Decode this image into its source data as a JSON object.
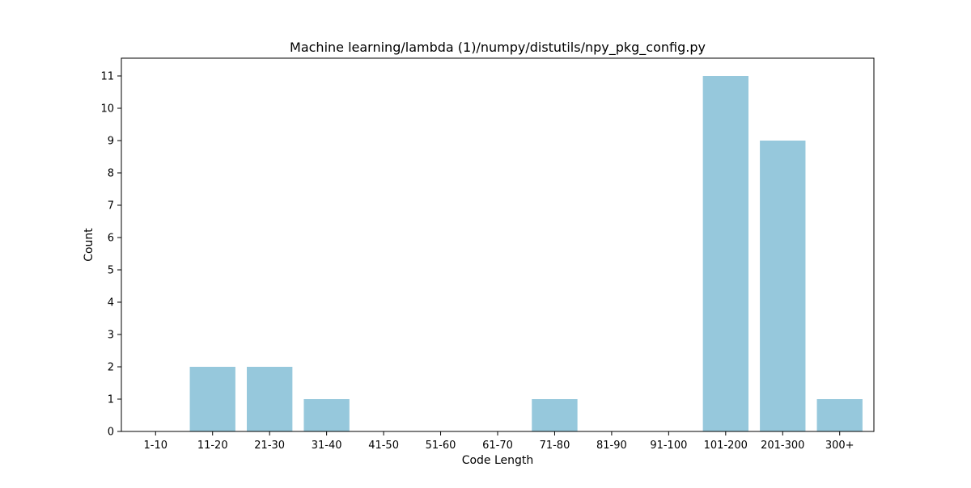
{
  "chart_data": {
    "type": "bar",
    "title": "Machine learning/lambda (1)/numpy/distutils/npy_pkg_config.py",
    "xlabel": "Code Length",
    "ylabel": "Count",
    "categories": [
      "1-10",
      "11-20",
      "21-30",
      "31-40",
      "41-50",
      "51-60",
      "61-70",
      "71-80",
      "81-90",
      "91-100",
      "101-200",
      "201-300",
      "300+"
    ],
    "values": [
      0,
      2,
      2,
      1,
      0,
      0,
      0,
      1,
      0,
      0,
      11,
      9,
      1
    ],
    "ylim": [
      0,
      11.55
    ],
    "yticks": [
      0,
      1,
      2,
      3,
      4,
      5,
      6,
      7,
      8,
      9,
      10,
      11
    ],
    "bar_color": "#96c8dc",
    "grid": false,
    "legend": "none"
  }
}
